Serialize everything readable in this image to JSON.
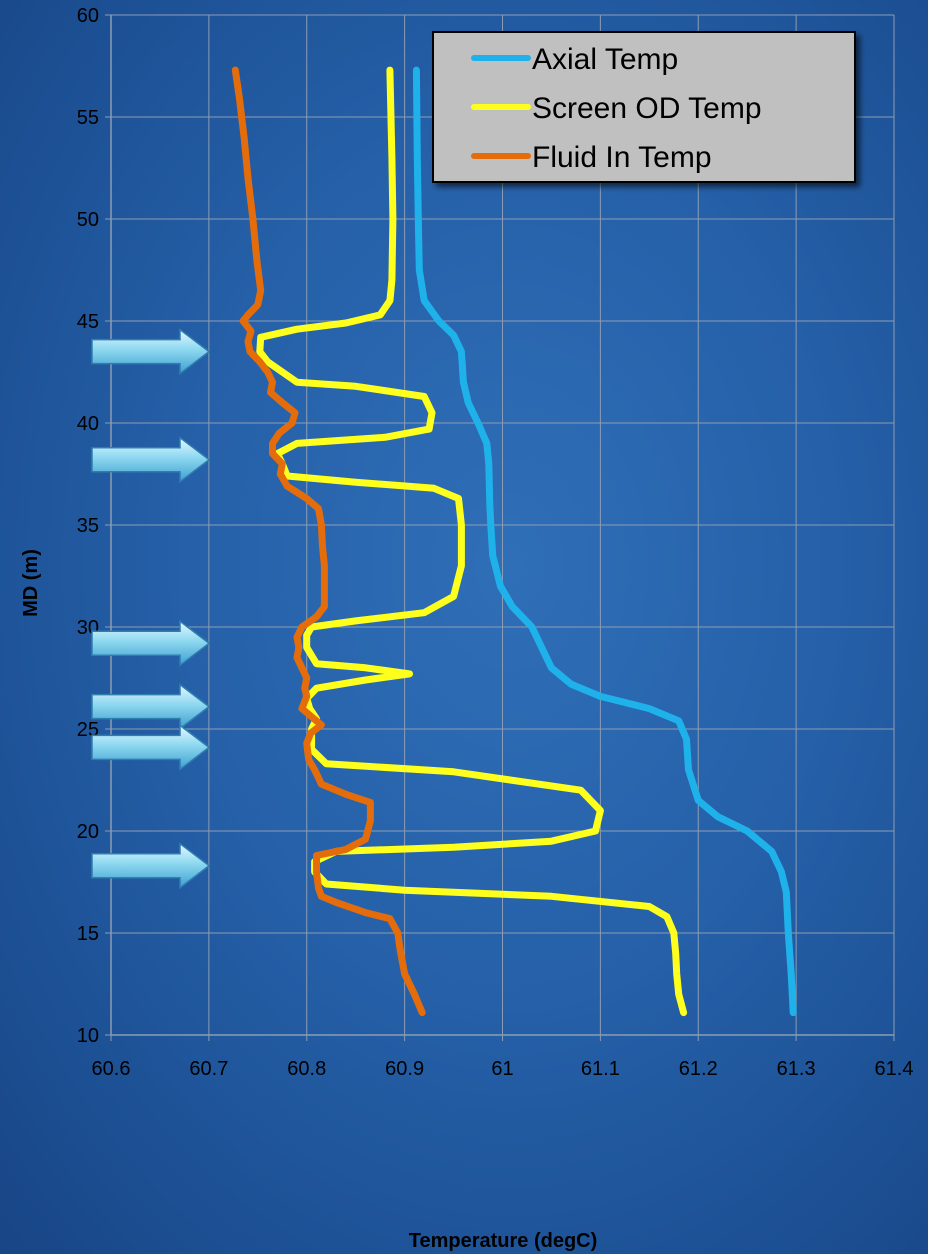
{
  "chart_data": {
    "type": "line",
    "title": "",
    "xlabel": "Temperature (degC)",
    "ylabel": "MD (m)",
    "xlim": [
      60.6,
      61.4
    ],
    "ylim": [
      10,
      60
    ],
    "xticks": [
      "60.6",
      "60.7",
      "60.8",
      "60.9",
      "61",
      "61.1",
      "61.2",
      "61.3",
      "61.4"
    ],
    "yticks": [
      "10",
      "15",
      "20",
      "25",
      "30",
      "35",
      "40",
      "45",
      "50",
      "55",
      "60"
    ],
    "grid": true,
    "legend_position": "top-right",
    "series": [
      {
        "name": "Axial Temp",
        "color": "#1fb2ea",
        "points": [
          [
            61.297,
            11.1
          ],
          [
            61.295,
            13
          ],
          [
            61.292,
            15
          ],
          [
            61.29,
            17
          ],
          [
            61.285,
            18
          ],
          [
            61.275,
            19
          ],
          [
            61.25,
            20
          ],
          [
            61.22,
            20.7
          ],
          [
            61.2,
            21.5
          ],
          [
            61.19,
            23
          ],
          [
            61.188,
            24.5
          ],
          [
            61.18,
            25.4
          ],
          [
            61.15,
            26
          ],
          [
            61.1,
            26.6
          ],
          [
            61.07,
            27.2
          ],
          [
            61.05,
            28
          ],
          [
            61.04,
            29
          ],
          [
            61.03,
            30
          ],
          [
            61.01,
            31
          ],
          [
            60.998,
            32
          ],
          [
            60.99,
            33.5
          ],
          [
            60.988,
            35
          ],
          [
            60.987,
            36
          ],
          [
            60.986,
            38
          ],
          [
            60.984,
            39
          ],
          [
            60.975,
            40
          ],
          [
            60.965,
            41
          ],
          [
            60.96,
            42
          ],
          [
            60.958,
            43.5
          ],
          [
            60.95,
            44.3
          ],
          [
            60.935,
            45
          ],
          [
            60.92,
            46
          ],
          [
            60.915,
            47.5
          ],
          [
            60.914,
            50
          ],
          [
            60.913,
            53
          ],
          [
            60.912,
            57.3
          ]
        ]
      },
      {
        "name": "Screen OD Temp",
        "color": "#ffff1e",
        "points": [
          [
            61.185,
            11.1
          ],
          [
            61.18,
            12
          ],
          [
            61.178,
            13
          ],
          [
            61.177,
            14
          ],
          [
            61.175,
            15
          ],
          [
            61.168,
            15.8
          ],
          [
            61.15,
            16.3
          ],
          [
            61.05,
            16.8
          ],
          [
            60.9,
            17.1
          ],
          [
            60.82,
            17.4
          ],
          [
            60.808,
            18
          ],
          [
            60.808,
            18.5
          ],
          [
            60.83,
            19
          ],
          [
            60.95,
            19.2
          ],
          [
            61.05,
            19.5
          ],
          [
            61.095,
            20
          ],
          [
            61.1,
            21
          ],
          [
            61.08,
            22
          ],
          [
            60.95,
            22.9
          ],
          [
            60.82,
            23.3
          ],
          [
            60.805,
            24
          ],
          [
            60.805,
            25
          ],
          [
            60.81,
            25.5
          ],
          [
            60.803,
            26
          ],
          [
            60.8,
            26.5
          ],
          [
            60.81,
            27
          ],
          [
            60.86,
            27.4
          ],
          [
            60.905,
            27.7
          ],
          [
            60.86,
            28
          ],
          [
            60.81,
            28.2
          ],
          [
            60.8,
            29
          ],
          [
            60.8,
            29.6
          ],
          [
            60.805,
            30
          ],
          [
            60.85,
            30.3
          ],
          [
            60.92,
            30.7
          ],
          [
            60.95,
            31.5
          ],
          [
            60.958,
            33
          ],
          [
            60.958,
            35
          ],
          [
            60.955,
            36.3
          ],
          [
            60.93,
            36.8
          ],
          [
            60.85,
            37.1
          ],
          [
            60.78,
            37.4
          ],
          [
            60.775,
            38
          ],
          [
            60.77,
            38.5
          ],
          [
            60.79,
            39
          ],
          [
            60.88,
            39.3
          ],
          [
            60.925,
            39.7
          ],
          [
            60.928,
            40.5
          ],
          [
            60.92,
            41.3
          ],
          [
            60.85,
            41.8
          ],
          [
            60.79,
            42
          ],
          [
            60.775,
            42.5
          ],
          [
            60.76,
            43
          ],
          [
            60.752,
            43.5
          ],
          [
            60.753,
            44.2
          ],
          [
            60.79,
            44.6
          ],
          [
            60.84,
            44.9
          ],
          [
            60.875,
            45.3
          ],
          [
            60.885,
            46
          ],
          [
            60.887,
            47
          ],
          [
            60.888,
            50
          ],
          [
            60.887,
            53
          ],
          [
            60.885,
            57.3
          ]
        ]
      },
      {
        "name": "Fluid In Temp",
        "color": "#e46c0a",
        "points": [
          [
            60.918,
            11.1
          ],
          [
            60.91,
            12
          ],
          [
            60.9,
            13
          ],
          [
            60.895,
            14.3
          ],
          [
            60.893,
            15
          ],
          [
            60.885,
            15.7
          ],
          [
            60.86,
            16
          ],
          [
            60.83,
            16.5
          ],
          [
            60.815,
            16.8
          ],
          [
            60.812,
            17.2
          ],
          [
            60.81,
            18
          ],
          [
            60.81,
            18.8
          ],
          [
            60.84,
            19.1
          ],
          [
            60.86,
            19.6
          ],
          [
            60.865,
            20.5
          ],
          [
            60.865,
            21.4
          ],
          [
            60.84,
            21.8
          ],
          [
            60.815,
            22.3
          ],
          [
            60.808,
            23
          ],
          [
            60.802,
            23.5
          ],
          [
            60.8,
            24.3
          ],
          [
            60.804,
            24.8
          ],
          [
            60.815,
            25.2
          ],
          [
            60.805,
            25.6
          ],
          [
            60.795,
            26
          ],
          [
            60.8,
            26.6
          ],
          [
            60.798,
            27
          ],
          [
            60.8,
            27.5
          ],
          [
            60.795,
            28
          ],
          [
            60.79,
            28.5
          ],
          [
            60.792,
            29
          ],
          [
            60.79,
            29.5
          ],
          [
            60.795,
            30
          ],
          [
            60.81,
            30.5
          ],
          [
            60.818,
            31
          ],
          [
            60.818,
            32
          ],
          [
            60.818,
            33
          ],
          [
            60.816,
            34
          ],
          [
            60.815,
            35
          ],
          [
            60.812,
            35.8
          ],
          [
            60.8,
            36.3
          ],
          [
            60.78,
            36.9
          ],
          [
            60.773,
            37.5
          ],
          [
            60.775,
            38
          ],
          [
            60.765,
            38.5
          ],
          [
            60.765,
            39
          ],
          [
            60.772,
            39.5
          ],
          [
            60.785,
            40
          ],
          [
            60.788,
            40.5
          ],
          [
            60.775,
            41
          ],
          [
            60.763,
            41.5
          ],
          [
            60.765,
            42
          ],
          [
            60.76,
            42.5
          ],
          [
            60.752,
            43
          ],
          [
            60.742,
            43.5
          ],
          [
            60.74,
            44
          ],
          [
            60.743,
            44.5
          ],
          [
            60.735,
            45
          ],
          [
            60.74,
            45.3
          ],
          [
            60.75,
            45.8
          ],
          [
            60.753,
            46.5
          ],
          [
            60.749,
            48
          ],
          [
            60.745,
            50
          ],
          [
            60.74,
            52
          ],
          [
            60.736,
            54
          ],
          [
            60.731,
            56
          ],
          [
            60.727,
            57.3
          ]
        ]
      }
    ]
  },
  "decor": {
    "arrow_markers": [
      43.5,
      38.2,
      29.2,
      26.1,
      24.1,
      18.3
    ]
  }
}
